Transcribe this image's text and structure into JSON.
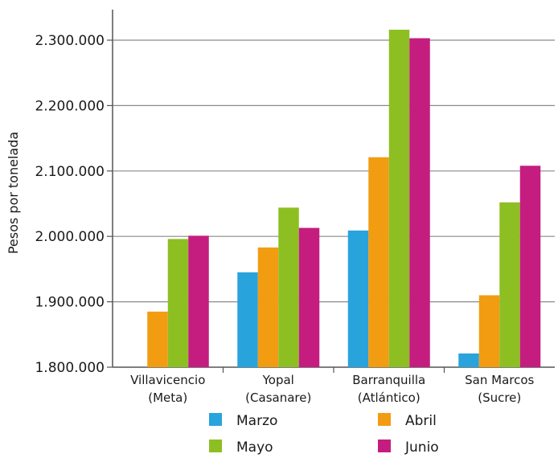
{
  "chart_data": {
    "type": "bar",
    "title": "",
    "xlabel": "",
    "ylabel": "Pesos por tonelada",
    "ylim": [
      1800000,
      2330000
    ],
    "yticks": [
      1800000,
      1900000,
      2000000,
      2100000,
      2200000,
      2300000
    ],
    "ytick_labels": [
      "1.800.000",
      "1.900.000",
      "2.000.000",
      "2.100.000",
      "2.200.000",
      "2.300.000"
    ],
    "categories": [
      [
        "Villavicencio",
        "(Meta)"
      ],
      [
        "Yopal",
        "(Casanare)"
      ],
      [
        "Barranquilla",
        "(Atlántico)"
      ],
      [
        "San Marcos",
        "(Sucre)"
      ]
    ],
    "series": [
      {
        "name": "Marzo",
        "color": "#29a3dc",
        "values": [
          1800000,
          1945000,
          2009000,
          1821000
        ]
      },
      {
        "name": "Abril",
        "color": "#f29c12",
        "values": [
          1885000,
          1983000,
          2121000,
          1910000
        ]
      },
      {
        "name": "Mayo",
        "color": "#8dbf23",
        "values": [
          1996000,
          2044000,
          2316000,
          2052000
        ]
      },
      {
        "name": "Junio",
        "color": "#c41d7f",
        "values": [
          2001000,
          2013000,
          2303000,
          2108000
        ]
      }
    ],
    "grid": true,
    "legend_position": "bottom"
  }
}
